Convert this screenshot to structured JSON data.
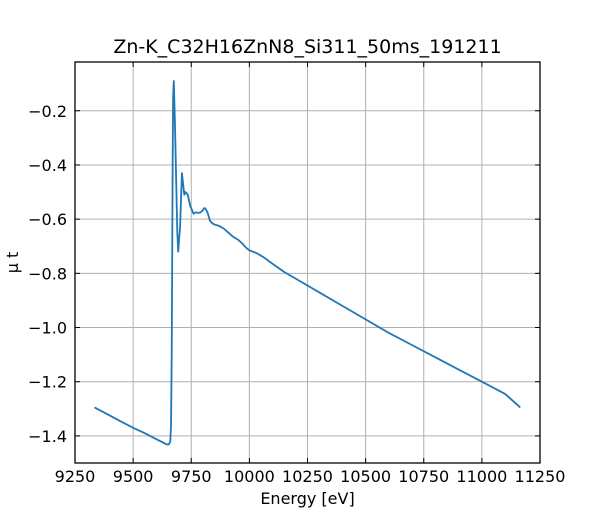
{
  "chart_data": {
    "type": "line",
    "title": "Zn-K_C32H16ZnN8_Si311_50ms_191211",
    "xlabel": "Energy [eV]",
    "ylabel": "μ t",
    "xlim": [
      9250,
      11250
    ],
    "ylim": [
      -1.5,
      -0.02
    ],
    "grid": true,
    "x_ticks": [
      9250,
      9500,
      9750,
      10000,
      10250,
      10500,
      10750,
      11000,
      11250
    ],
    "x_tick_labels": [
      "9250",
      "9500",
      "9750",
      "10000",
      "10250",
      "10500",
      "10750",
      "11000",
      "11250"
    ],
    "y_ticks": [
      -1.4,
      -1.2,
      -1.0,
      -0.8,
      -0.6,
      -0.4,
      -0.2
    ],
    "y_tick_labels": [
      "−1.4",
      "−1.2",
      "−1.0",
      "−0.8",
      "−0.6",
      "−0.4",
      "−0.2"
    ],
    "series": [
      {
        "color": "#1f77b4",
        "x": [
          9334,
          9400,
          9450,
          9500,
          9550,
          9600,
          9630,
          9640,
          9650,
          9655,
          9660,
          9663,
          9666,
          9668,
          9670,
          9672,
          9675,
          9680,
          9685,
          9690,
          9694,
          9698,
          9702,
          9705,
          9710,
          9715,
          9720,
          9725,
          9735,
          9745,
          9760,
          9770,
          9780,
          9790,
          9800,
          9805,
          9810,
          9820,
          9830,
          9840,
          9850,
          9870,
          9890,
          9910,
          9930,
          9950,
          9970,
          9985,
          10000,
          10030,
          10060,
          10100,
          10150,
          10200,
          10300,
          10400,
          10500,
          10600,
          10700,
          10800,
          10900,
          11000,
          11100,
          11165
        ],
        "y": [
          -1.295,
          -1.325,
          -1.348,
          -1.37,
          -1.39,
          -1.412,
          -1.425,
          -1.43,
          -1.432,
          -1.43,
          -1.42,
          -1.36,
          -1.1,
          -0.75,
          -0.4,
          -0.15,
          -0.09,
          -0.25,
          -0.45,
          -0.65,
          -0.72,
          -0.67,
          -0.63,
          -0.55,
          -0.43,
          -0.47,
          -0.51,
          -0.5,
          -0.51,
          -0.55,
          -0.58,
          -0.575,
          -0.577,
          -0.575,
          -0.567,
          -0.56,
          -0.56,
          -0.575,
          -0.605,
          -0.615,
          -0.62,
          -0.625,
          -0.635,
          -0.65,
          -0.665,
          -0.675,
          -0.69,
          -0.705,
          -0.715,
          -0.725,
          -0.74,
          -0.765,
          -0.795,
          -0.82,
          -0.87,
          -0.92,
          -0.97,
          -1.02,
          -1.065,
          -1.11,
          -1.155,
          -1.2,
          -1.245,
          -1.295
        ]
      }
    ]
  }
}
